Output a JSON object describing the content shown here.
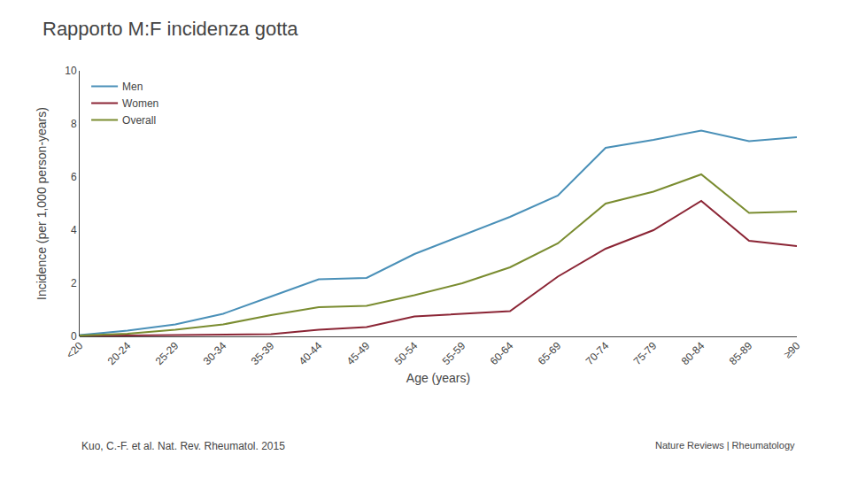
{
  "chart_data": {
    "type": "line",
    "title": "Rapporto M:F incidenza gotta",
    "xlabel": "Age (years)",
    "ylabel": "Incidence (per 1,000 person-years)",
    "annotations": [
      "Kuo, C.-F. et al. Nat. Rev. Rheumatol. 2015",
      "Nature Reviews | Rheumatology"
    ],
    "categories": [
      "<20",
      "20-24",
      "25-29",
      "30-34",
      "35-39",
      "40-44",
      "45-49",
      "50-54",
      "55-59",
      "60-64",
      "65-69",
      "70-74",
      "75-79",
      "80-84",
      "85-89",
      "≥90"
    ],
    "series": [
      {
        "name": "Men",
        "color": "#4a90b8",
        "values": [
          0.05,
          0.22,
          0.45,
          0.85,
          1.5,
          2.15,
          2.2,
          3.1,
          3.8,
          4.5,
          5.3,
          7.1,
          7.4,
          7.75,
          7.35,
          7.5
        ]
      },
      {
        "name": "Women",
        "color": "#8b2535",
        "values": [
          0.02,
          0.03,
          0.04,
          0.05,
          0.08,
          0.25,
          0.35,
          0.75,
          0.85,
          0.95,
          2.25,
          3.3,
          4.0,
          5.1,
          3.6,
          3.4
        ]
      },
      {
        "name": "Overall",
        "color": "#7a8c30",
        "values": [
          0.03,
          0.1,
          0.25,
          0.45,
          0.8,
          1.1,
          1.15,
          1.55,
          2.0,
          2.6,
          3.5,
          5.0,
          5.45,
          6.1,
          4.65,
          4.7
        ]
      }
    ],
    "ylim": [
      0,
      10
    ],
    "yticks": [
      0,
      2,
      4,
      6,
      8,
      10
    ],
    "grid": false,
    "legend": "upper left"
  }
}
